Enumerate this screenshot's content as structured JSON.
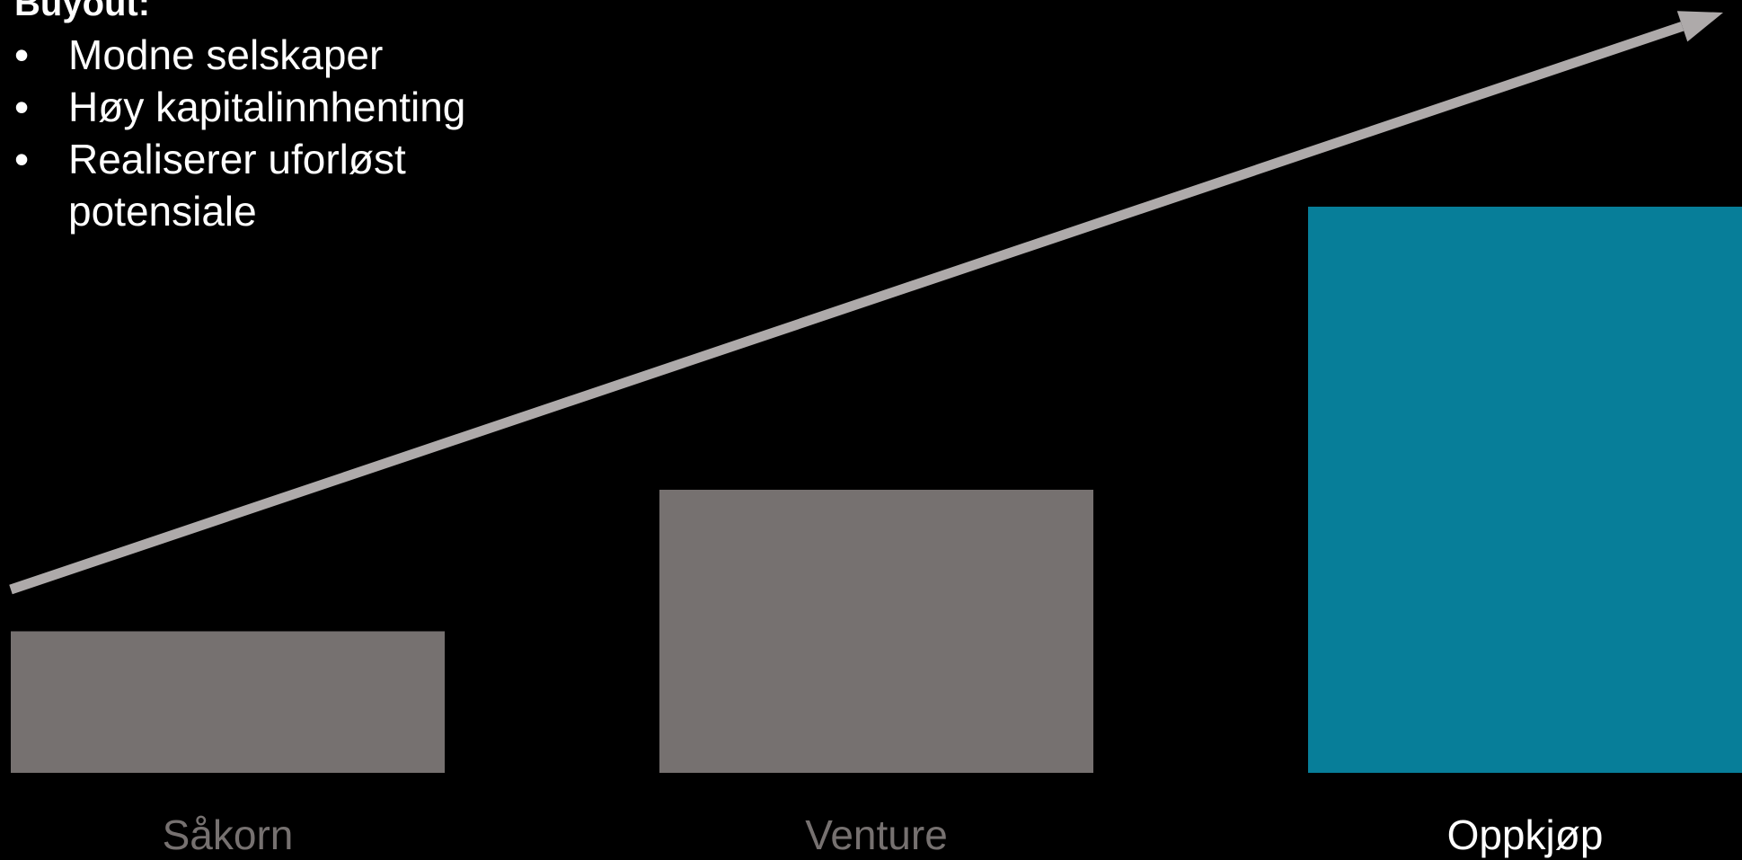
{
  "callout": {
    "heading": "Buyout:",
    "bullet_glyph": "•",
    "items": [
      "Modne selskaper",
      "Høy kapitalinnhenting",
      "Realiserer uforløst potensiale"
    ]
  },
  "chart_data": {
    "type": "bar",
    "title": "",
    "xlabel": "",
    "ylabel": "",
    "categories": [
      "Såkorn",
      "Venture",
      "Oppkjøp"
    ],
    "values": [
      1,
      2,
      4
    ],
    "ylim": [
      0,
      4
    ],
    "grid": false,
    "legend": "none",
    "bar_colors": [
      "#767170",
      "#767170",
      "#077e99"
    ],
    "label_colors": [
      "#767170",
      "#767170",
      "#ffffff"
    ],
    "trend_arrow": {
      "present": true,
      "color": "#aeaaaa",
      "direction": "up-right"
    }
  }
}
